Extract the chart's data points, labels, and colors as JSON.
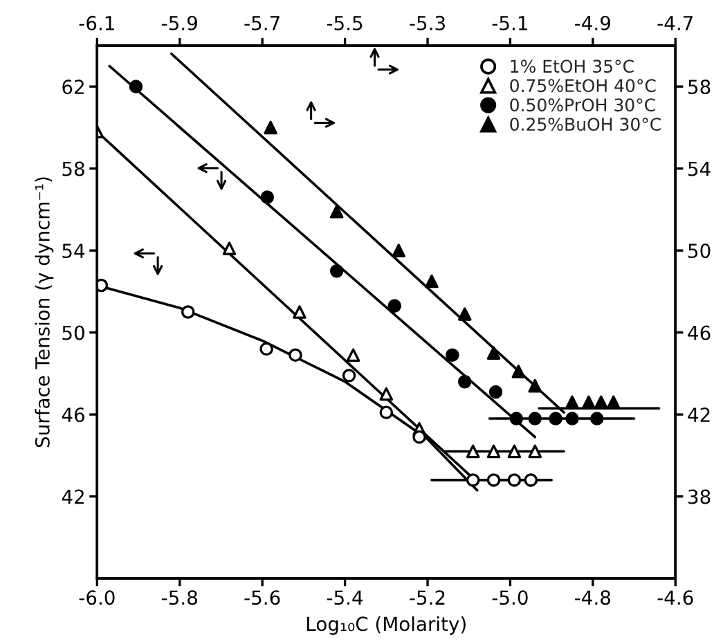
{
  "chart_data": {
    "type": "scatter",
    "xlabel": "Log₁₀C (Molarity)",
    "ylabel": "Surface Tension (γ dyncm⁻¹)",
    "xlim": [
      -6.0,
      -4.6
    ],
    "xticks": [
      {
        "value": -6.0,
        "label": "-6.0"
      },
      -5.8,
      -5.6,
      -5.4,
      -5.2,
      {
        "value": -5.0,
        "label": "-5.0"
      },
      -4.8,
      -4.6
    ],
    "x2lim": [
      -6.1,
      -4.7
    ],
    "x2ticks": [
      -6.1,
      -5.9,
      -5.7,
      -5.5,
      -5.3,
      -5.1,
      -4.9,
      -4.7
    ],
    "ylim": [
      38,
      64
    ],
    "yticks": [
      42,
      46,
      50,
      54,
      58,
      62
    ],
    "y2lim": [
      34,
      60
    ],
    "y2ticks": [
      38,
      42,
      46,
      50,
      54,
      58
    ],
    "legend": "top right",
    "grid": false,
    "series": [
      {
        "name": "1% EtOH 35°C",
        "marker": "circle",
        "color": "#000000",
        "x": [
          -5.99,
          -5.78,
          -5.59,
          -5.52,
          -5.39,
          -5.3,
          -5.22,
          -5.09,
          -5.04,
          -4.99,
          -4.95
        ],
        "values": [
          52.3,
          51.0,
          49.2,
          48.9,
          47.9,
          46.1,
          44.9,
          42.8,
          42.8,
          42.8,
          42.8
        ]
      },
      {
        "name": "0.75%EtOH 40°C",
        "marker": "triangle",
        "color": "#000000",
        "x": [
          -6.0,
          -5.68,
          -5.51,
          -5.38,
          -5.3,
          -5.22,
          -5.09,
          -5.04,
          -4.99,
          -4.94
        ],
        "values": [
          59.8,
          54.1,
          51.0,
          48.9,
          47.0,
          45.3,
          44.2,
          44.2,
          44.2,
          44.2
        ]
      },
      {
        "name": "0.50%PrOH 30°C",
        "marker": "circle",
        "color": "#000000",
        "axis": "y2",
        "x": [
          -5.906,
          -5.588,
          -5.42,
          -5.28,
          -5.14,
          -5.11,
          -5.035,
          -4.985,
          -4.94,
          -4.89,
          -4.85,
          -4.79
        ],
        "values": [
          58.0,
          52.6,
          49.0,
          47.3,
          44.9,
          43.6,
          43.1,
          41.8,
          41.8,
          41.8,
          41.8,
          41.8
        ]
      },
      {
        "name": "0.25%BuOH 30°C",
        "marker": "triangle",
        "color": "#000000",
        "axis": "y2",
        "x": [
          -5.58,
          -5.42,
          -5.27,
          -5.19,
          -5.11,
          -5.04,
          -4.98,
          -4.94,
          -4.85,
          -4.81,
          -4.78,
          -4.75
        ],
        "values": [
          56.0,
          51.9,
          50.0,
          48.5,
          46.9,
          45.0,
          44.1,
          43.4,
          42.6,
          42.6,
          42.6,
          42.6
        ]
      },
      {
        "type": "line",
        "color": "#000000",
        "x": [
          -6.0,
          -5.8,
          -5.6,
          -5.4,
          -5.2,
          -5.08
        ],
        "values": [
          52.3,
          51.2,
          49.6,
          47.6,
          44.8,
          42.3
        ]
      },
      {
        "type": "line",
        "color": "#000000",
        "x": [
          -6.0,
          -5.08
        ],
        "values": [
          59.8,
          42.7
        ]
      },
      {
        "type": "line",
        "color": "#000000",
        "x": [
          -5.19,
          -4.9
        ],
        "values": [
          42.8,
          42.8
        ]
      },
      {
        "type": "line",
        "color": "#000000",
        "x": [
          -5.16,
          -4.87
        ],
        "values": [
          44.2,
          44.2
        ]
      },
      {
        "type": "line",
        "color": "#000000",
        "axis": "y2",
        "x": [
          -5.97,
          -4.94
        ],
        "values": [
          59.0,
          40.9
        ]
      },
      {
        "type": "line",
        "color": "#000000",
        "axis": "y2",
        "x": [
          -5.05,
          -4.7
        ],
        "values": [
          41.8,
          41.8
        ]
      },
      {
        "type": "line",
        "color": "#000000",
        "axis": "y2",
        "x": [
          -5.82,
          -4.87
        ],
        "values": [
          59.6,
          42.1
        ]
      },
      {
        "type": "line",
        "color": "#000000",
        "axis": "y2",
        "x": [
          -4.93,
          -4.64
        ],
        "values": [
          42.3,
          42.3
        ]
      }
    ]
  }
}
